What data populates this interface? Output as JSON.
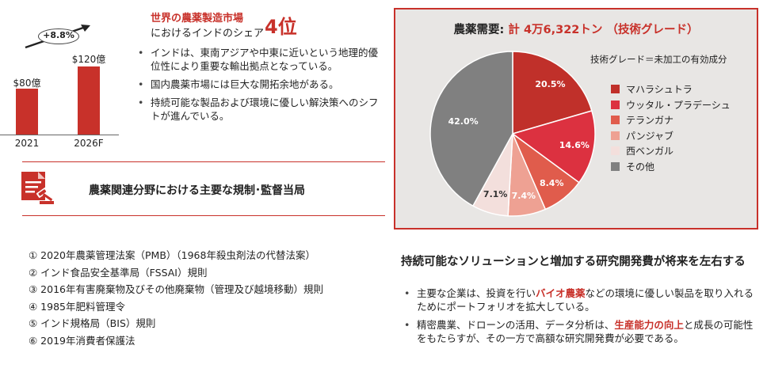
{
  "market_chart": {
    "growth_label": "+8.8%",
    "bars": [
      {
        "category": "2021",
        "value_label": "$80億",
        "value": 80
      },
      {
        "category": "2026F",
        "value_label": "$120億",
        "value": 120
      }
    ],
    "colors": {
      "bar": "#c8312a"
    }
  },
  "headline": {
    "line1": "世界の農薬製造市場",
    "line2": "におけるインドのシェア",
    "rank": "4位"
  },
  "market_bullets": [
    "インドは、東南アジアや中東に近いという地理的優位性により重要な輸出拠点となっている。",
    "国内農薬市場には巨大な開拓余地がある。",
    "持続可能な製品および環境に優しい解決策へのシフトが進んでいる。"
  ],
  "regulators": {
    "title": "農薬関連分野における主要な規制･監督当局",
    "icon": "legal-document-gavel-icon",
    "items": [
      "① 2020年農薬管理法案（PMB）（1968年殺虫剤法の代替法案）",
      "② インド食品安全基準局（FSSAI）規則",
      "③ 2016年有害廃棄物及びその他廃棄物（管理及び越境移動）規則",
      "④ 1985年肥料管理令",
      "⑤ インド規格局（BIS）規則",
      "⑥ 2019年消費者保護法"
    ]
  },
  "chart_data": {
    "type": "pie",
    "title": "農薬需要: 計 4万6,322トン （技術グレード）",
    "title_prefix": "農薬需要: ",
    "title_value": "計 4万6,322トン （技術グレード）",
    "subtitle": "技術グレード＝未加工の有効成分",
    "slices": [
      {
        "name": "マハラシュトラ",
        "value": 20.5,
        "label": "20.5%",
        "color": "#c0302a"
      },
      {
        "name": "ウッタル・プラデーシュ",
        "value": 14.6,
        "label": "14.6%",
        "color": "#dc3140"
      },
      {
        "name": "テランガナ",
        "value": 8.4,
        "label": "8.4%",
        "color": "#e05c4c"
      },
      {
        "name": "パンジャブ",
        "value": 7.4,
        "label": "7.4%",
        "color": "#eea193"
      },
      {
        "name": "西ベンガル",
        "value": 7.1,
        "label": "7.1%",
        "color": "#f3dfdc"
      },
      {
        "name": "その他",
        "value": 42.0,
        "label": "42.0%",
        "color": "#808080"
      }
    ],
    "legend_position": "right"
  },
  "sustainability": {
    "title": "持続可能なソリューションと増加する研究開発費が将来を左右する",
    "bullet1": {
      "pre": "主要な企業は、投資を行い",
      "highlight": "バイオ農薬",
      "post": "などの環境に優しい製品を取り入れるためにポートフォリオを拡大している。"
    },
    "bullet2": {
      "pre": "精密農業、ドローンの活用、データ分析は、",
      "highlight": "生産能力の向上",
      "post": "と成長の可能性をもたらすが、その一方で高額な研究開発費が必要である。"
    }
  }
}
